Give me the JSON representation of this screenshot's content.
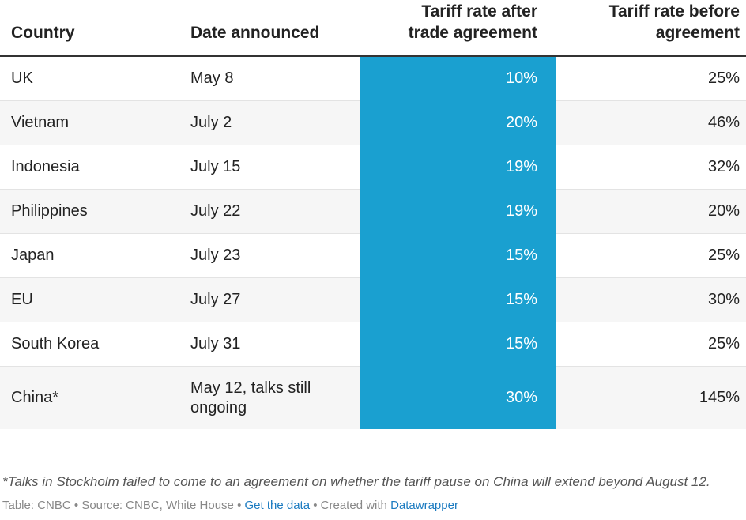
{
  "chart_data": {
    "type": "table",
    "columns": [
      "Country",
      "Date announced",
      "Tariff rate after trade agreement",
      "Tariff rate before agreement"
    ],
    "highlight_column": "Tariff rate after trade agreement",
    "highlight_color": "#1aa0d0",
    "rows": [
      {
        "country": "UK",
        "date": "May 8",
        "after": "10%",
        "before": "25%"
      },
      {
        "country": "Vietnam",
        "date": "July 2",
        "after": "20%",
        "before": "46%"
      },
      {
        "country": "Indonesia",
        "date": "July 15",
        "after": "19%",
        "before": "32%"
      },
      {
        "country": "Philippines",
        "date": "July 22",
        "after": "19%",
        "before": "20%"
      },
      {
        "country": "Japan",
        "date": "July 23",
        "after": "15%",
        "before": "25%"
      },
      {
        "country": "EU",
        "date": "July 27",
        "after": "15%",
        "before": "30%"
      },
      {
        "country": "South Korea",
        "date": "July 31",
        "after": "15%",
        "before": "25%"
      },
      {
        "country": "China*",
        "date": "May 12, talks still ongoing",
        "after": "30%",
        "before": "145%"
      }
    ],
    "after_values": [
      10,
      20,
      19,
      19,
      15,
      15,
      15,
      30
    ],
    "before_values": [
      25,
      46,
      32,
      20,
      25,
      30,
      25,
      145
    ]
  },
  "header": {
    "country": "Country",
    "date": "Date announced",
    "after_line1": "Tariff rate after",
    "after_line2": "trade agreement",
    "before_line1": "Tariff rate before",
    "before_line2": "agreement"
  },
  "note": "*Talks in Stockholm failed to come to an agreement on whether the tariff pause on China will extend beyond August 12.",
  "footer": {
    "table_credit": "Table: CNBC",
    "source": "Source: CNBC, White House",
    "get_data": "Get the data",
    "created_with": "Created with",
    "datawrapper": "Datawrapper",
    "separator": "•"
  }
}
